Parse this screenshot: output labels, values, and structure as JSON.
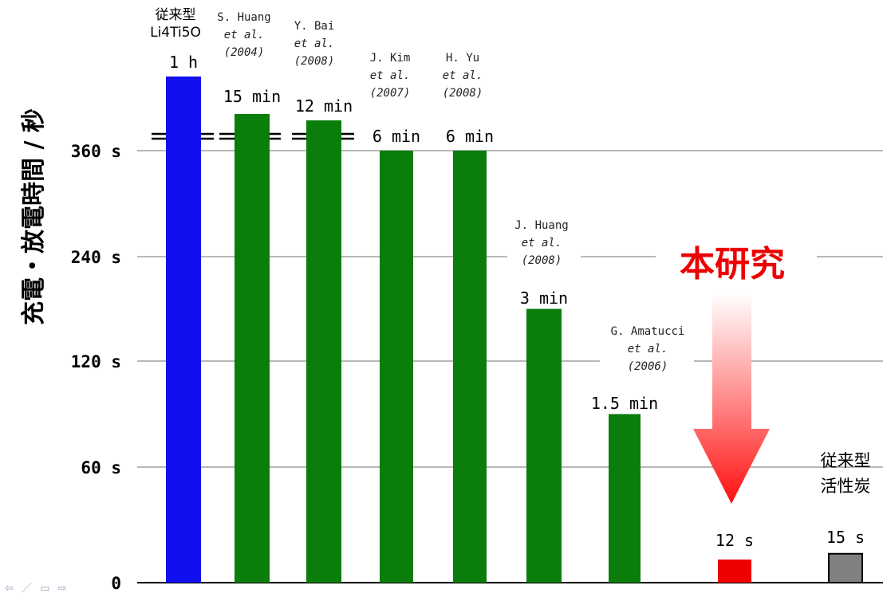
{
  "chart_data": {
    "type": "bar",
    "ylabel": "充電・放電時間 / 秒",
    "y_ticks": [
      {
        "label": "0",
        "value": 0
      },
      {
        "label": "60 s",
        "value": 60
      },
      {
        "label": "120 s",
        "value": 120
      },
      {
        "label": "240 s",
        "value": 240
      },
      {
        "label": "360 s",
        "value": 360
      }
    ],
    "axis_break": true,
    "grid": "horizontal",
    "bars": [
      {
        "value_label": "1 h",
        "value": 3600,
        "source": [
          "従来型",
          "Li4Ti5O"
        ],
        "color": "#1010ee",
        "broken": true
      },
      {
        "value_label": "15 min",
        "value": 900,
        "source": [
          "S. Huang",
          "et al.",
          "(2004)"
        ],
        "color": "#0a7d0a",
        "broken": true
      },
      {
        "value_label": "12 min",
        "value": 720,
        "source": [
          "Y. Bai",
          "et al.",
          "(2008)"
        ],
        "color": "#0a7d0a",
        "broken": true
      },
      {
        "value_label": "6 min",
        "value": 360,
        "source": [
          "J. Kim",
          "et al.",
          "(2007)"
        ],
        "color": "#0a7d0a",
        "broken": false
      },
      {
        "value_label": "6 min",
        "value": 360,
        "source": [
          "H. Yu",
          "et al.",
          "(2008)"
        ],
        "color": "#0a7d0a",
        "broken": false
      },
      {
        "value_label": "3 min",
        "value": 180,
        "source": [
          "J. Huang",
          "et al.",
          "(2008)"
        ],
        "color": "#0a7d0a",
        "broken": false
      },
      {
        "value_label": "1.5 min",
        "value": 90,
        "source": [
          "G. Amatucci",
          "et al.",
          "(2006)"
        ],
        "color": "#0a7d0a",
        "broken": false
      },
      {
        "value_label": "12 s",
        "value": 12,
        "source": [],
        "color": "#ee0000",
        "broken": false
      },
      {
        "value_label": "15 s",
        "value": 15,
        "source": [
          "従来型",
          "活性炭"
        ],
        "color": "#808080",
        "broken": false
      }
    ],
    "highlight": {
      "text": "本研究",
      "target": "12 s",
      "color": "#ee0000"
    }
  },
  "nav": {
    "prev": "⇦",
    "pen": "／",
    "menu": "▭",
    "next": "⇨"
  }
}
